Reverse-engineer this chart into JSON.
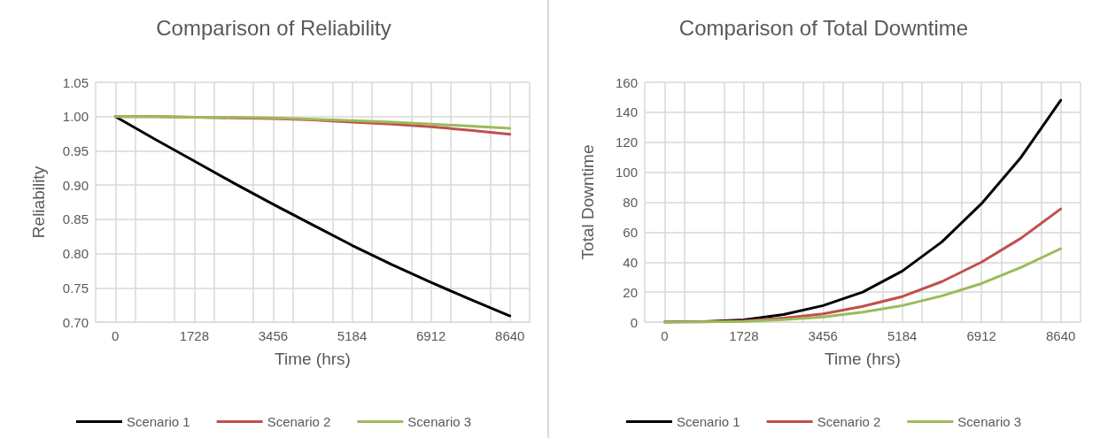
{
  "chart_data": [
    {
      "type": "line",
      "title": "Comparison of Reliability",
      "xlabel": "Time (hrs)",
      "ylabel": "Reliability",
      "x": [
        0,
        864,
        1728,
        2592,
        3456,
        4320,
        5184,
        6048,
        6912,
        7776,
        8640
      ],
      "series": [
        {
          "name": "Scenario 1",
          "color": "#000000",
          "values": [
            1.0,
            0.967,
            0.935,
            0.903,
            0.872,
            0.842,
            0.812,
            0.784,
            0.758,
            0.733,
            0.709
          ]
        },
        {
          "name": "Scenario 2",
          "color": "#c0504d",
          "values": [
            1.0,
            1.0,
            0.999,
            0.998,
            0.997,
            0.995,
            0.992,
            0.989,
            0.985,
            0.98,
            0.974
          ]
        },
        {
          "name": "Scenario 3",
          "color": "#9bbb59",
          "values": [
            1.0,
            1.0,
            0.999,
            0.999,
            0.998,
            0.996,
            0.994,
            0.992,
            0.989,
            0.986,
            0.983
          ]
        }
      ],
      "xlim": [
        -432,
        9072
      ],
      "xticks": [
        {
          "value": -432,
          "label": null
        },
        0,
        {
          "value": 432,
          "label": null
        },
        {
          "value": 1296,
          "label": null
        },
        1728,
        {
          "value": 2160,
          "label": null
        },
        {
          "value": 3024,
          "label": null
        },
        3456,
        {
          "value": 3888,
          "label": null
        },
        {
          "value": 4752,
          "label": null
        },
        5184,
        {
          "value": 5616,
          "label": null
        },
        {
          "value": 6480,
          "label": null
        },
        6912,
        {
          "value": 7344,
          "label": null
        },
        {
          "value": 8208,
          "label": null
        },
        8640,
        {
          "value": 9072,
          "label": null
        }
      ],
      "ylim": [
        0.7,
        1.05
      ],
      "yticks": [
        {
          "value": 0.7,
          "label": "0.70"
        },
        0.75,
        {
          "value": 0.8,
          "label": "0.80"
        },
        0.85,
        {
          "value": 0.9,
          "label": "0.90"
        },
        0.95,
        {
          "value": 1.0,
          "label": "1.00"
        },
        1.05
      ],
      "grid": true,
      "legend": "bottom",
      "marker": "none",
      "line_style": "solid"
    },
    {
      "type": "line",
      "title": "Comparison of Total Downtime",
      "xlabel": "Time (hrs)",
      "ylabel": "Total Downtime",
      "x": [
        0,
        864,
        1728,
        2592,
        3456,
        4320,
        5184,
        6048,
        6912,
        7776,
        8640
      ],
      "series": [
        {
          "name": "Scenario 1",
          "color": "#000000",
          "values": [
            0,
            0.3,
            1.5,
            5,
            11,
            20,
            34,
            53.5,
            79,
            110,
            148
          ]
        },
        {
          "name": "Scenario 2",
          "color": "#c0504d",
          "values": [
            0,
            0.1,
            0.8,
            2.6,
            5.5,
            10.5,
            17,
            27,
            40,
            56,
            75.5
          ]
        },
        {
          "name": "Scenario 3",
          "color": "#9bbb59",
          "values": [
            0,
            0.1,
            0.5,
            1.6,
            3.4,
            6.7,
            11,
            17.5,
            25.7,
            36.5,
            49
          ]
        }
      ],
      "xlim": [
        -432,
        9072
      ],
      "xticks": [
        {
          "value": -432,
          "label": null
        },
        0,
        {
          "value": 432,
          "label": null
        },
        {
          "value": 1296,
          "label": null
        },
        1728,
        {
          "value": 2160,
          "label": null
        },
        {
          "value": 3024,
          "label": null
        },
        3456,
        {
          "value": 3888,
          "label": null
        },
        {
          "value": 4752,
          "label": null
        },
        5184,
        {
          "value": 5616,
          "label": null
        },
        {
          "value": 6480,
          "label": null
        },
        6912,
        {
          "value": 7344,
          "label": null
        },
        {
          "value": 8208,
          "label": null
        },
        8640,
        {
          "value": 9072,
          "label": null
        }
      ],
      "ylim": [
        0,
        160
      ],
      "yticks": [
        0,
        20,
        40,
        60,
        80,
        100,
        120,
        140,
        160
      ],
      "grid": true,
      "legend": "bottom",
      "marker": "none",
      "line_style": "solid"
    }
  ]
}
